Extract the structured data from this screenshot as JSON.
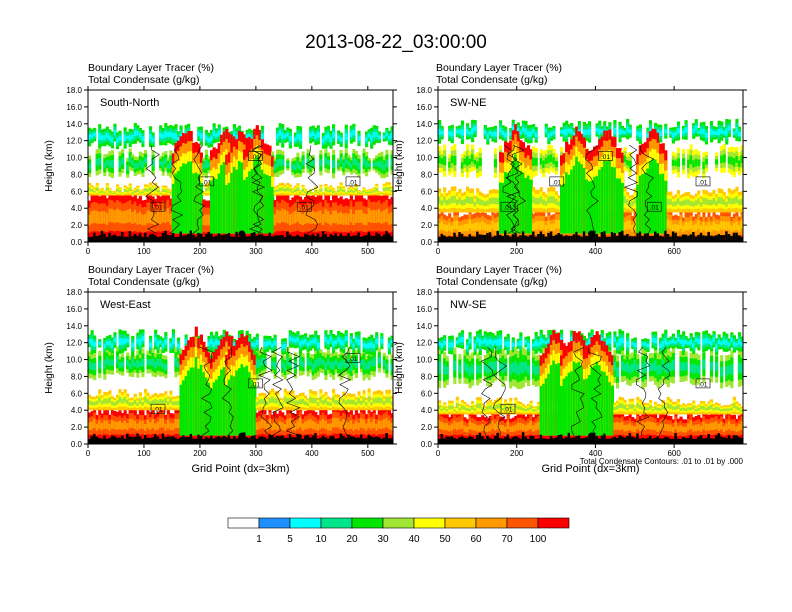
{
  "page_title": "2013-08-22_03:00:00",
  "colors": {
    "levels": [
      "#ffffff",
      "#1e8fff",
      "#00ffff",
      "#00e68a",
      "#00e600",
      "#a0e632",
      "#ffff00",
      "#ffc800",
      "#ff9900",
      "#ff5500",
      "#ff0000"
    ]
  },
  "colorbar": {
    "labels": [
      "1",
      "5",
      "10",
      "20",
      "30",
      "40",
      "50",
      "60",
      "70",
      "100"
    ]
  },
  "contour_note": "Total Condensate Contours: .01 to .01 by .000",
  "chart_data": [
    {
      "type": "heatmap",
      "name": "South-North",
      "subtitle_tracer": "Boundary Layer Tracer   (%)",
      "subtitle_condensate": "Total Condensate   (g/kg)",
      "ylabel": "Height (km)",
      "xlabel": "",
      "xlim": [
        0,
        545
      ],
      "ylim": [
        0,
        18
      ],
      "xticks": [
        "0",
        "100",
        "200",
        "300",
        "400",
        "500"
      ],
      "yticks": [
        "0.0",
        "2.0",
        "4.0",
        "6.0",
        "8.0",
        "10.0",
        "12.0",
        "14.0",
        "16.0",
        "18.0"
      ],
      "marker_x": 275,
      "contour_labels": [
        ".01",
        ".01",
        ".01",
        ".01",
        ".01"
      ]
    },
    {
      "type": "heatmap",
      "name": "SW-NE",
      "subtitle_tracer": "Boundary Layer Tracer   (%)",
      "subtitle_condensate": "Total Condensate   (g/kg)",
      "ylabel": "Height (km)",
      "xlabel": "",
      "xlim": [
        0,
        775
      ],
      "ylim": [
        0,
        18
      ],
      "xticks": [
        "0",
        "200",
        "400",
        "600"
      ],
      "yticks": [
        "0.0",
        "2.0",
        "4.0",
        "6.0",
        "8.0",
        "10.0",
        "12.0",
        "14.0",
        "16.0",
        "18.0"
      ],
      "marker_x": 390,
      "contour_labels": [
        ".01",
        ".01",
        ".01",
        ".01",
        ".01"
      ]
    },
    {
      "type": "heatmap",
      "name": "West-East",
      "subtitle_tracer": "Boundary Layer Tracer   (%)",
      "subtitle_condensate": "Total Condensate   (g/kg)",
      "ylabel": "Height (km)",
      "xlabel": "Grid Point (dx=3km)",
      "xlim": [
        0,
        545
      ],
      "ylim": [
        0,
        18
      ],
      "xticks": [
        "0",
        "100",
        "200",
        "300",
        "400",
        "500"
      ],
      "yticks": [
        "0.0",
        "2.0",
        "4.0",
        "6.0",
        "8.0",
        "10.0",
        "12.0",
        "14.0",
        "16.0",
        "18.0"
      ],
      "marker_x": 275,
      "contour_labels": [
        ".01",
        ".01",
        ".01"
      ]
    },
    {
      "type": "heatmap",
      "name": "NW-SE",
      "subtitle_tracer": "Boundary Layer Tracer   (%)",
      "subtitle_condensate": "Total Condensate   (g/kg)",
      "ylabel": "Height (km)",
      "xlabel": "Grid Point (dx=3km)",
      "xlim": [
        0,
        775
      ],
      "ylim": [
        0,
        18
      ],
      "xticks": [
        "0",
        "200",
        "400",
        "600"
      ],
      "yticks": [
        "0.0",
        "2.0",
        "4.0",
        "6.0",
        "8.0",
        "10.0",
        "12.0",
        "14.0",
        "16.0",
        "18.0"
      ],
      "marker_x": 390,
      "contour_labels": [
        ".01",
        ".01"
      ]
    }
  ]
}
